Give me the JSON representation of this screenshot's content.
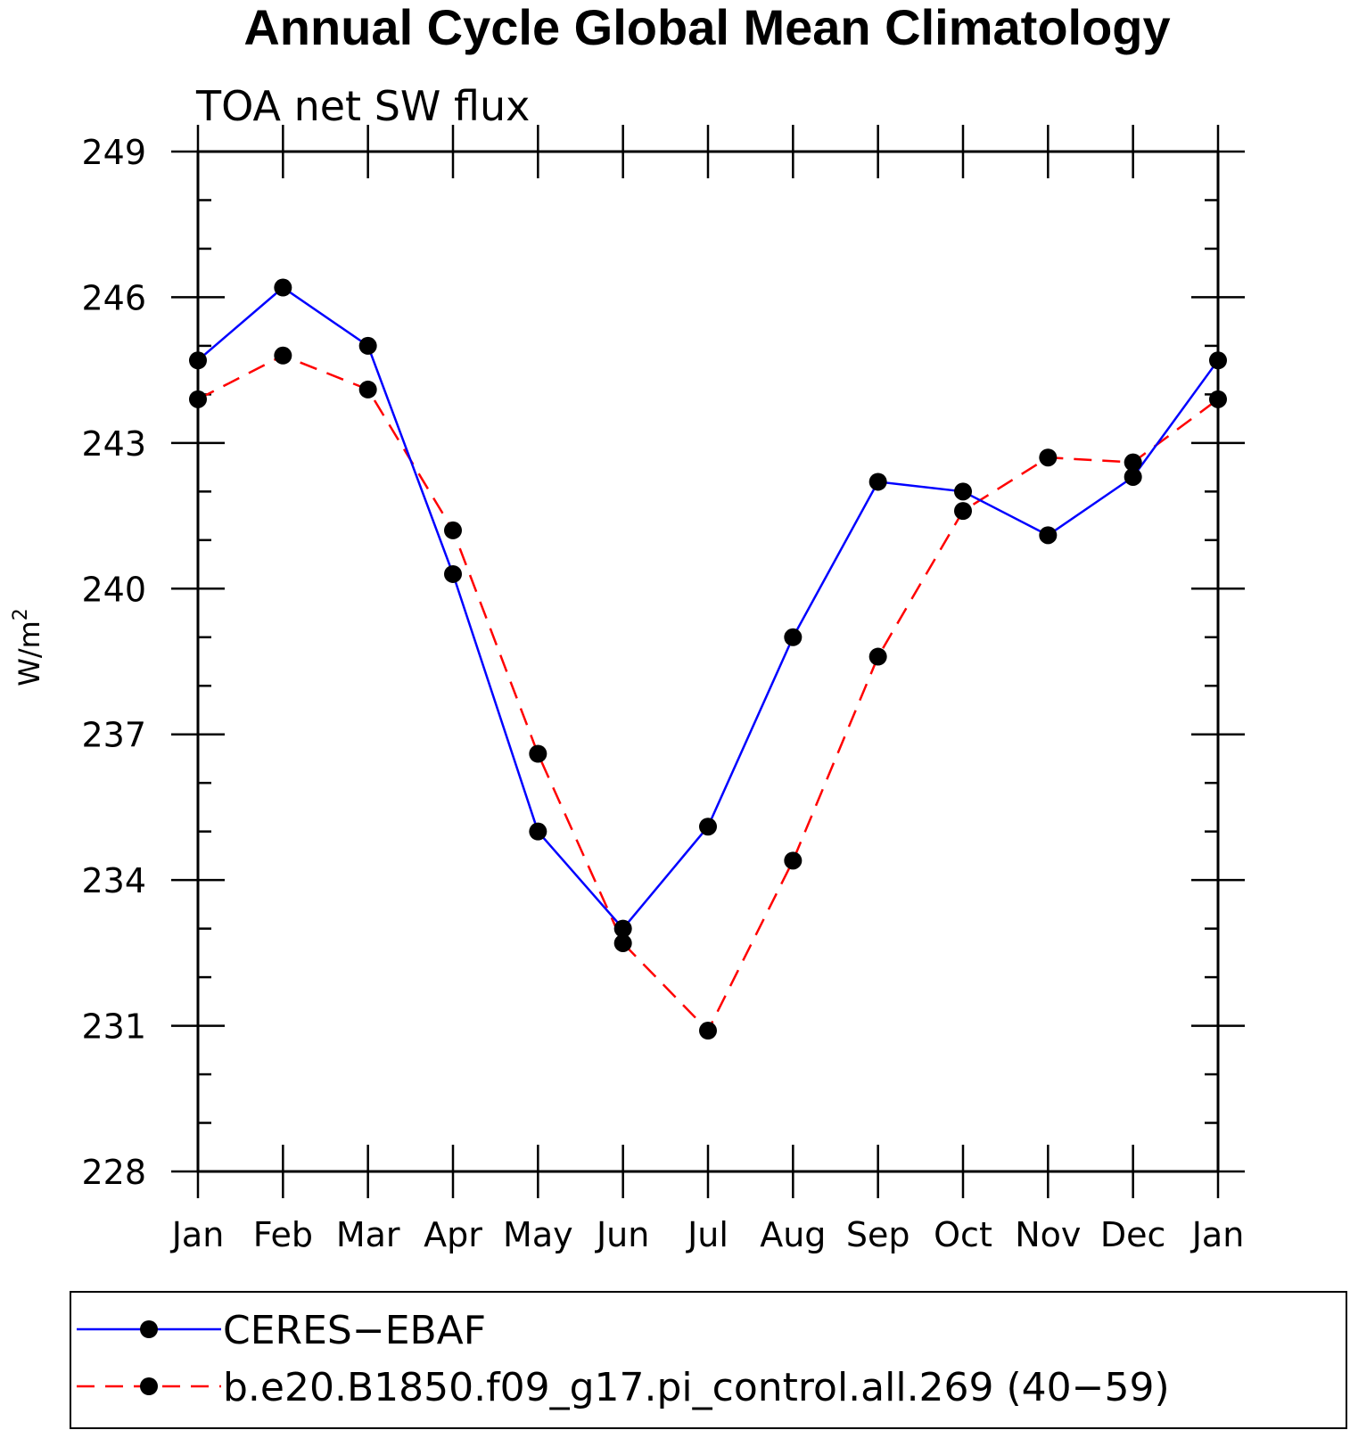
{
  "chart_data": {
    "type": "line",
    "title": "Annual Cycle Global Mean Climatology",
    "subtitle": "TOA net SW flux",
    "ylabel": "W/m",
    "ylabel_superscript": "2",
    "xlabel": "",
    "categories": [
      "Jan",
      "Feb",
      "Mar",
      "Apr",
      "May",
      "Jun",
      "Jul",
      "Aug",
      "Sep",
      "Oct",
      "Nov",
      "Dec",
      "Jan"
    ],
    "y_ticks": [
      "249",
      "246",
      "243",
      "240",
      "237",
      "234",
      "231",
      "228"
    ],
    "ylim": [
      228,
      249
    ],
    "series": [
      {
        "name": "CERES−EBAF",
        "color": "#0000ff",
        "dash": "solid",
        "values": [
          244.7,
          246.2,
          245.0,
          240.3,
          235.0,
          233.0,
          235.1,
          239.0,
          242.2,
          242.0,
          241.1,
          242.3,
          244.7
        ]
      },
      {
        "name": "b.e20.B1850.f09_g17.pi_control.all.269 (40−59)",
        "color": "#ff0000",
        "dash": "dashed",
        "values": [
          243.9,
          244.8,
          244.1,
          241.2,
          236.6,
          232.7,
          230.9,
          234.4,
          238.6,
          241.6,
          242.7,
          242.6,
          243.9
        ]
      }
    ],
    "marker_color": "#000000",
    "grid": false,
    "legend_position": "bottom"
  }
}
